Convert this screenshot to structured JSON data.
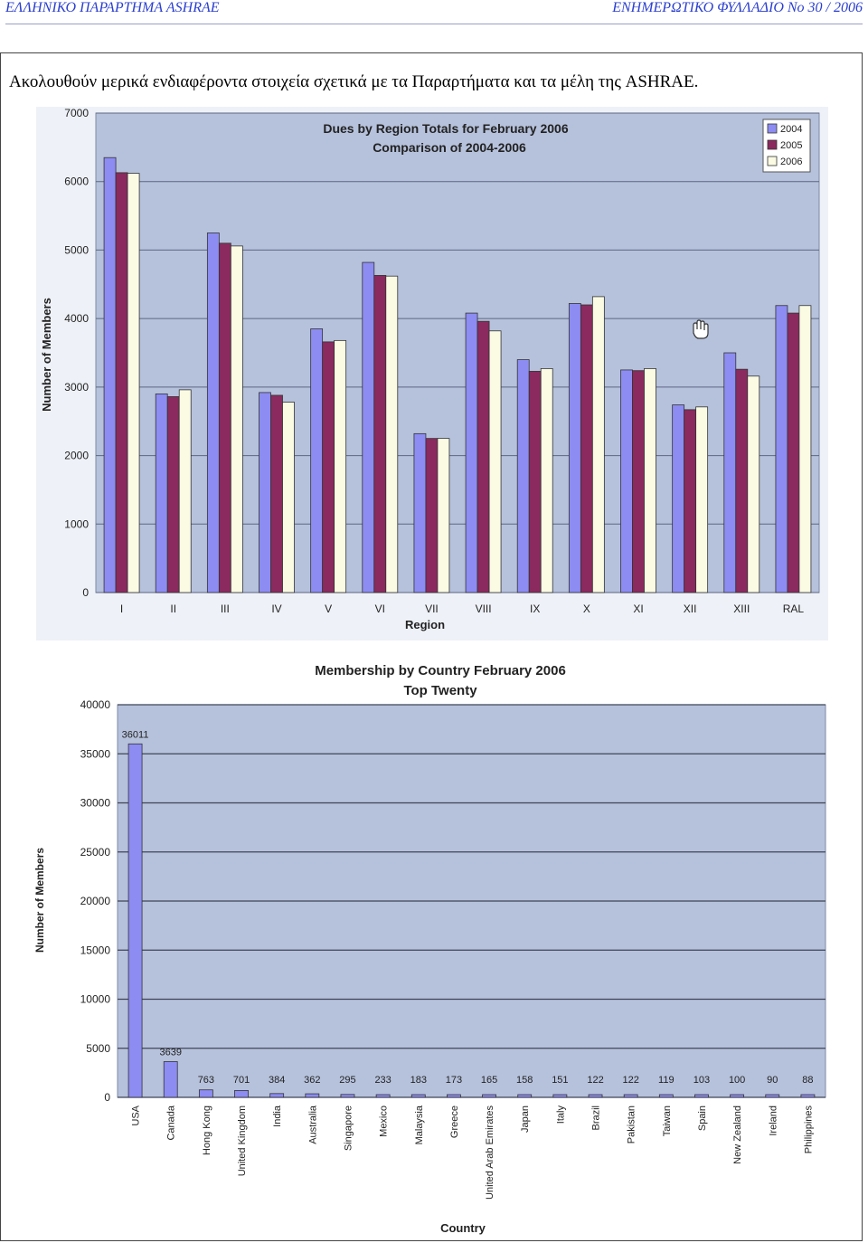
{
  "header": {
    "left": "ΕΛΛΗΝΙΚΟ ΠΑΡΑΡΤΗΜΑ ASHRAE",
    "right": "ΕΝΗΜΕΡΩΤΙΚΟ ΦΥΛΛΑΔΙΟ No 30 / 2006"
  },
  "intro_text": "Ακολουθούν μερικά ενδιαφέροντα στοιχεία σχετικά με τα Παραρτήματα και τα μέλη της ASHRAE.",
  "colors": {
    "plot_bg": "#b6c2dc",
    "series_2004": "#8c8cf2",
    "series_2005": "#8a2a5e",
    "series_2006": "#fbfbe4"
  },
  "chart_data": [
    {
      "type": "bar",
      "title": "Dues by Region Totals for February 2006",
      "subtitle": "Comparison of 2004-2006",
      "xlabel": "Region",
      "ylabel": "Number of Members",
      "ylim": [
        0,
        7000
      ],
      "yticks": [
        "0",
        "1000",
        "2000",
        "3000",
        "4000",
        "5000",
        "6000",
        "7000"
      ],
      "grid": true,
      "legend_position": "top-right",
      "categories": [
        "I",
        "II",
        "III",
        "IV",
        "V",
        "VI",
        "VII",
        "VIII",
        "IX",
        "X",
        "XI",
        "XII",
        "XIII",
        "RAL"
      ],
      "series": [
        {
          "name": "2004",
          "values": [
            6350,
            2900,
            5250,
            2920,
            3850,
            4820,
            2320,
            4080,
            3400,
            4220,
            3250,
            2740,
            3500,
            4190
          ]
        },
        {
          "name": "2005",
          "values": [
            6130,
            2860,
            5100,
            2880,
            3660,
            4630,
            2250,
            3960,
            3230,
            4200,
            3240,
            2670,
            3260,
            4080
          ]
        },
        {
          "name": "2006",
          "values": [
            6120,
            2960,
            5060,
            2780,
            3680,
            4620,
            2250,
            3820,
            3270,
            4320,
            3270,
            2710,
            3160,
            4190
          ]
        }
      ]
    },
    {
      "type": "bar",
      "title": "Membership by Country February 2006",
      "subtitle": "Top Twenty",
      "xlabel": "Country",
      "ylabel": "Number of Members",
      "ylim": [
        0,
        40000
      ],
      "yticks": [
        "0",
        "5000",
        "10000",
        "15000",
        "20000",
        "25000",
        "30000",
        "35000",
        "40000"
      ],
      "grid": true,
      "categories": [
        "USA",
        "Canada",
        "Hong Kong",
        "United Kingdom",
        "India",
        "Australia",
        "Singapore",
        "Mexico",
        "Malaysia",
        "Greece",
        "United Arab Emirates",
        "Japan",
        "Italy",
        "Brazil",
        "Pakistan",
        "Taiwan",
        "Spain",
        "New Zealand",
        "Ireland",
        "Philippines"
      ],
      "values": [
        36011,
        3639,
        763,
        701,
        384,
        362,
        295,
        233,
        183,
        173,
        165,
        158,
        151,
        122,
        122,
        119,
        103,
        100,
        90,
        88
      ],
      "data_labels": [
        "36011",
        "3639",
        "763",
        "701",
        "384",
        "362",
        "295",
        "233",
        "183",
        "173",
        "165",
        "158",
        "151",
        "122",
        "122",
        "119",
        "103",
        "100",
        "90",
        "88"
      ]
    }
  ]
}
